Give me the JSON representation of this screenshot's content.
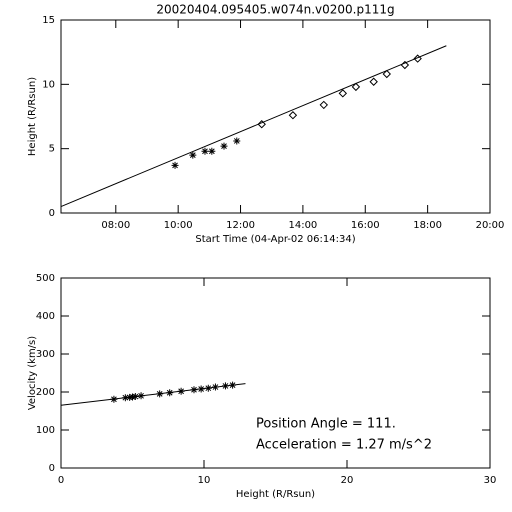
{
  "chart_data": [
    {
      "type": "scatter",
      "title": "20020404.095405.w074n.v0200.p111g",
      "x_label": "Start Time (04-Apr-02 06:14:34)",
      "y_label": "Height (R/Rsun)",
      "xlim": [
        6.2428,
        20
      ],
      "ylim": [
        0,
        15
      ],
      "xticks": [
        {
          "value": 8,
          "label": "08:00"
        },
        {
          "value": 10,
          "label": "10:00"
        },
        {
          "value": 12,
          "label": "12:00"
        },
        {
          "value": 14,
          "label": "14:00"
        },
        {
          "value": 16,
          "label": "16:00"
        },
        {
          "value": 18,
          "label": "18:00"
        },
        {
          "value": 20,
          "label": "20:00"
        }
      ],
      "yticks": [
        0,
        5,
        10,
        15
      ],
      "series": [
        {
          "marker": "asterisk",
          "color": "#000000",
          "x": [
            9.9,
            10.47,
            10.86,
            11.08,
            11.47,
            11.88
          ],
          "values": [
            3.7,
            4.5,
            4.8,
            4.8,
            5.2,
            5.6
          ]
        },
        {
          "marker": "diamond",
          "color": "#000000",
          "x": [
            12.68,
            13.68,
            14.67,
            15.28,
            15.7,
            16.27,
            16.69,
            17.27,
            17.68
          ],
          "values": [
            6.9,
            7.6,
            8.4,
            9.3,
            9.8,
            10.2,
            10.8,
            11.5,
            12.0
          ]
        },
        {
          "marker": "line",
          "color": "#000000",
          "x": [
            6.2428,
            18.6
          ],
          "values": [
            0.5,
            13.0
          ]
        }
      ]
    },
    {
      "type": "scatter",
      "x_label": "Height (R/Rsun)",
      "y_label": "Velocity (km/s)",
      "xlim": [
        0,
        30
      ],
      "ylim": [
        0,
        500
      ],
      "xticks": [
        0,
        10,
        20,
        30
      ],
      "yticks": [
        0,
        100,
        200,
        300,
        400,
        500
      ],
      "annotations": [
        "Position Angle =   111.",
        "Acceleration =    1.27 m/s^2"
      ],
      "series": [
        {
          "marker": "asterisk",
          "color": "#000000",
          "x": [
            3.7,
            4.5,
            4.8,
            5.0,
            5.2,
            5.6,
            6.9,
            7.6,
            8.4,
            9.3,
            9.8,
            10.3,
            10.8,
            11.5,
            12.0
          ],
          "values": [
            181,
            185,
            186,
            187,
            188,
            190,
            195,
            198,
            202,
            206,
            208,
            210,
            213,
            216,
            218
          ]
        },
        {
          "marker": "line",
          "color": "#000000",
          "x": [
            0,
            12.9
          ],
          "values": [
            165,
            222
          ]
        }
      ]
    }
  ]
}
